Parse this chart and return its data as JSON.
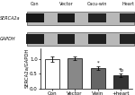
{
  "blot_labels": [
    "Con",
    "Vector",
    "Cacu-win",
    "Heart"
  ],
  "row_labels": [
    "SERCA2a",
    "GAPDH"
  ],
  "bar_categories": [
    "Con",
    "Vector",
    "Vwin",
    "+heart"
  ],
  "bar_values": [
    1.0,
    1.02,
    0.68,
    0.44
  ],
  "bar_errors": [
    0.09,
    0.05,
    0.07,
    0.05
  ],
  "bar_colors": [
    "#ffffff",
    "#888888",
    "#666666",
    "#333333"
  ],
  "bar_edge_color": "#000000",
  "ylabel": "SERCA2a/GAPDH",
  "ylim": [
    0.0,
    1.35
  ],
  "yticks": [
    0.0,
    0.5,
    1.0
  ],
  "ytick_labels": [
    "0.0",
    "0.5",
    "1.0"
  ],
  "annotations": [
    "",
    "",
    "*",
    "*b"
  ],
  "figure_bg": "#ffffff",
  "blot_strip_color": "#b8b8b8",
  "blot_band_dark": "#1a1a1a",
  "blot_label_color": "#111111",
  "tick_fontsize": 4,
  "label_fontsize": 3.8,
  "blot_fontsize": 3.5
}
